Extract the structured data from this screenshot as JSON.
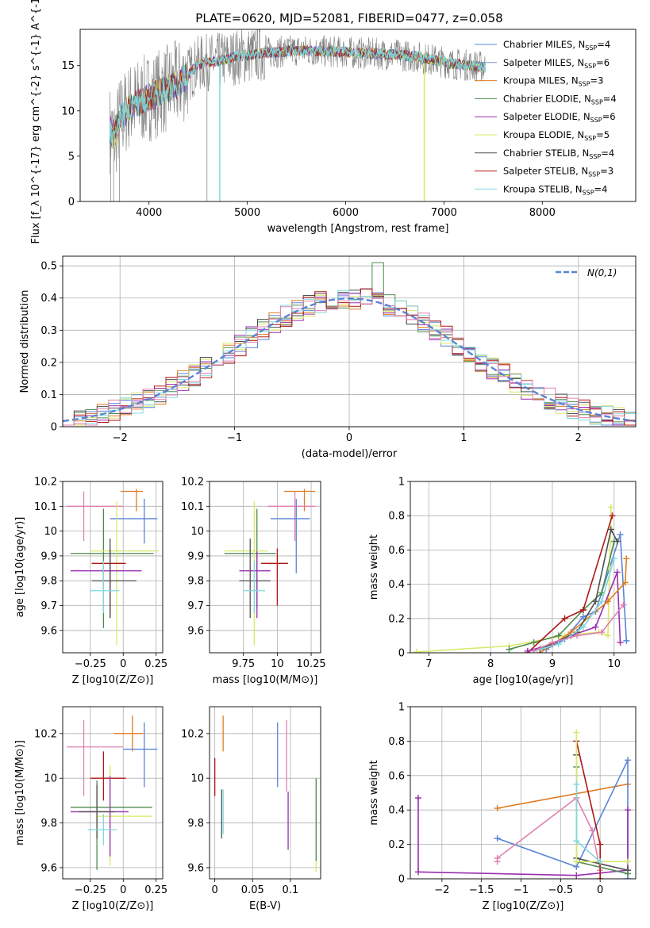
{
  "title": "PLATE=0620, MJD=52081, FIBERID=0477, z=0.058",
  "colors": {
    "c1": "#5b84d6",
    "c2": "#7b8fd4",
    "c3": "#e07b22",
    "c4": "#4e8a4e",
    "c5": "#9a2eb0",
    "c6": "#d9e86a",
    "c7": "#505050",
    "c8": "#b01616",
    "c9": "#7fd9e0",
    "pink": "#e080b0",
    "normal": "#5b84d6",
    "data": "#808080"
  },
  "chart_data": [
    {
      "id": "spectrum",
      "type": "line",
      "xlabel": "wavelength [Angstrom, rest frame]",
      "ylabel": "Flux [f_λ 10^{-17} erg cm^{-2} s^{-1} A^{-1}]",
      "xlim": [
        3300,
        8950
      ],
      "ylim": [
        0,
        19
      ],
      "xticks": [
        4000,
        5000,
        6000,
        7000,
        8000
      ],
      "yticks": [
        0,
        5,
        10,
        15
      ],
      "legend": [
        {
          "name": "Chabrier MILES, N_SSP=4",
          "color": "c1"
        },
        {
          "name": "Salpeter MILES, N_SSP=6",
          "color": "c2"
        },
        {
          "name": "Kroupa MILES, N_SSP=3",
          "color": "c3"
        },
        {
          "name": "Chabrier ELODIE, N_SSP=4",
          "color": "c4"
        },
        {
          "name": "Salpeter ELODIE, N_SSP=6",
          "color": "c5"
        },
        {
          "name": "Kroupa ELODIE, N_SSP=5",
          "color": "c6"
        },
        {
          "name": "Chabrier STELIB, N_SSP=4",
          "color": "c7"
        },
        {
          "name": "Salpeter STELIB, N_SSP=3",
          "color": "c8"
        },
        {
          "name": "Kroupa STELIB, N_SSP=4",
          "color": "c9"
        }
      ],
      "continuum": [
        [
          3600,
          8
        ],
        [
          3650,
          7
        ],
        [
          3700,
          9
        ],
        [
          3800,
          10.5
        ],
        [
          3900,
          11
        ],
        [
          4000,
          11.5
        ],
        [
          4100,
          12
        ],
        [
          4200,
          12.5
        ],
        [
          4300,
          13
        ],
        [
          4400,
          14
        ],
        [
          4500,
          15.2
        ],
        [
          4700,
          15.5
        ],
        [
          4900,
          16
        ],
        [
          5100,
          16.3
        ],
        [
          5300,
          16.5
        ],
        [
          5500,
          16.7
        ],
        [
          5700,
          16.6
        ],
        [
          5900,
          16.5
        ],
        [
          6100,
          16.4
        ],
        [
          6300,
          16.3
        ],
        [
          6500,
          16.2
        ],
        [
          6700,
          16
        ],
        [
          6900,
          15.6
        ],
        [
          7100,
          15.2
        ],
        [
          7300,
          15
        ],
        [
          7420,
          14.8
        ]
      ]
    },
    {
      "id": "residuals",
      "type": "histogram",
      "xlabel": "(data-model)/error",
      "ylabel": "Normed distribution",
      "xlim": [
        -2.5,
        2.5
      ],
      "ylim": [
        0,
        0.53
      ],
      "xticks": [
        -2,
        -1,
        0,
        1,
        2
      ],
      "yticks": [
        0.0,
        0.1,
        0.2,
        0.3,
        0.4,
        0.5
      ],
      "legend": "N(0,1)",
      "grid": true
    },
    {
      "id": "age_vs_Z",
      "type": "errorbar",
      "xlabel": "Z [log10(Z/Z⊙)]",
      "ylabel": "age [log10(age/yr)]",
      "xlim": [
        -0.46,
        0.3
      ],
      "ylim": [
        9.51,
        10.2
      ],
      "xticks": [
        -0.25,
        0.0,
        0.25
      ],
      "yticks": [
        9.6,
        9.7,
        9.8,
        9.9,
        10.0,
        10.1,
        10.2
      ],
      "points": [
        {
          "color": "c3",
          "x": 0.1,
          "xerr": [
            0.12,
            0.05
          ],
          "y": 10.16,
          "yerr": [
            0.08,
            0.01
          ]
        },
        {
          "color": "pink",
          "x": -0.3,
          "xerr": [
            0.13,
            0.3
          ],
          "y": 10.1,
          "yerr": [
            0.14,
            0.06
          ]
        },
        {
          "color": "c1",
          "x": 0.16,
          "xerr": [
            0.26,
            0.1
          ],
          "y": 10.05,
          "yerr": [
            0.1,
            0.08
          ]
        },
        {
          "color": "c4",
          "x": -0.15,
          "xerr": [
            0.25,
            0.38
          ],
          "y": 9.91,
          "yerr": [
            0.3,
            0.18
          ]
        },
        {
          "color": "c6",
          "x": -0.05,
          "xerr": [
            0.2,
            0.32
          ],
          "y": 9.92,
          "yerr": [
            0.38,
            0.2
          ]
        },
        {
          "color": "c8",
          "x": -0.1,
          "xerr": [
            0.14,
            0.12
          ],
          "y": 9.87,
          "yerr": [
            0.2,
            0.06
          ]
        },
        {
          "color": "c5",
          "x": -0.1,
          "xerr": [
            0.3,
            0.24
          ],
          "y": 9.84,
          "yerr": [
            0.19,
            0.08
          ]
        },
        {
          "color": "c7",
          "x": -0.1,
          "xerr": [
            0.14,
            0.2
          ],
          "y": 9.8,
          "yerr": [
            0.15,
            0.17
          ]
        },
        {
          "color": "c9",
          "x": -0.15,
          "xerr": [
            0.1,
            0.12
          ],
          "y": 9.76,
          "yerr": [
            0.09,
            0.12
          ]
        }
      ]
    },
    {
      "id": "age_vs_mass",
      "type": "errorbar",
      "xlabel": "mass [log10(M/M⊙)]",
      "ylabel": "",
      "xlim": [
        9.5,
        10.32
      ],
      "ylim": [
        9.51,
        10.2
      ],
      "xticks": [
        9.75,
        10.0,
        10.25
      ],
      "yticks": [
        9.6,
        9.7,
        9.8,
        9.9,
        10.0,
        10.1,
        10.2
      ],
      "points": [
        {
          "color": "c3",
          "x": 10.2,
          "xerr": [
            0.15,
            0.08
          ],
          "y": 10.16,
          "yerr": [
            0.08,
            0.01
          ]
        },
        {
          "color": "pink",
          "x": 10.13,
          "xerr": [
            0.2,
            0.15
          ],
          "y": 10.1,
          "yerr": [
            0.14,
            0.06
          ]
        },
        {
          "color": "c1",
          "x": 10.14,
          "xerr": [
            0.19,
            0.1
          ],
          "y": 10.05,
          "yerr": [
            0.22,
            0.08
          ]
        },
        {
          "color": "c4",
          "x": 9.85,
          "xerr": [
            0.24,
            0.14
          ],
          "y": 9.91,
          "yerr": [
            0.22,
            0.18
          ]
        },
        {
          "color": "c6",
          "x": 9.83,
          "xerr": [
            0.22,
            0.1
          ],
          "y": 9.92,
          "yerr": [
            0.38,
            0.2
          ]
        },
        {
          "color": "c8",
          "x": 10.0,
          "xerr": [
            0.12,
            0.08
          ],
          "y": 9.87,
          "yerr": [
            0.17,
            0.06
          ]
        },
        {
          "color": "c5",
          "x": 9.85,
          "xerr": [
            0.13,
            0.1
          ],
          "y": 9.84,
          "yerr": [
            0.19,
            0.08
          ]
        },
        {
          "color": "c7",
          "x": 9.8,
          "xerr": [
            0.08,
            0.15
          ],
          "y": 9.8,
          "yerr": [
            0.15,
            0.17
          ]
        },
        {
          "color": "c9",
          "x": 9.83,
          "xerr": [
            0.08,
            0.08
          ],
          "y": 9.76,
          "yerr": [
            0.09,
            0.12
          ]
        }
      ]
    },
    {
      "id": "weight_vs_age",
      "type": "line",
      "xlabel": "age [log10(age/yr)]",
      "ylabel": "mass weight",
      "xlim": [
        6.7,
        10.35
      ],
      "ylim": [
        0,
        1.0
      ],
      "xticks": [
        7,
        8,
        9,
        10
      ],
      "yticks": [
        0.0,
        0.2,
        0.4,
        0.6,
        0.8,
        1.0
      ],
      "series": [
        {
          "color": "c1",
          "x": [
            8.9,
            9.2,
            9.5,
            9.7,
            10.1,
            10.2
          ],
          "y": [
            0.02,
            0.08,
            0.21,
            0.24,
            0.69,
            0.07
          ]
        },
        {
          "color": "c6",
          "x": [
            6.8,
            8.3,
            9.2,
            9.75,
            9.9,
            9.95
          ],
          "y": [
            0.005,
            0.04,
            0.1,
            0.12,
            0.1,
            0.85
          ]
        },
        {
          "color": "c4",
          "x": [
            8.3,
            8.7,
            9.1,
            9.5,
            9.8,
            10.0
          ],
          "y": [
            0.02,
            0.06,
            0.1,
            0.25,
            0.35,
            0.65
          ]
        },
        {
          "color": "c8",
          "x": [
            8.6,
            9.2,
            9.5,
            9.97
          ],
          "y": [
            0.0,
            0.2,
            0.25,
            0.8
          ]
        },
        {
          "color": "c5",
          "x": [
            8.6,
            9.0,
            9.3,
            9.7,
            10.05,
            10.1
          ],
          "y": [
            0.01,
            0.05,
            0.1,
            0.15,
            0.47,
            0.06
          ]
        },
        {
          "color": "c3",
          "x": [
            8.8,
            9.3,
            9.9,
            10.18,
            10.2
          ],
          "y": [
            0.0,
            0.12,
            0.3,
            0.41,
            0.55
          ]
        },
        {
          "color": "c7",
          "x": [
            8.8,
            9.4,
            9.7,
            9.95,
            10.05
          ],
          "y": [
            0.02,
            0.12,
            0.3,
            0.72,
            0.65
          ]
        },
        {
          "color": "c9",
          "x": [
            8.7,
            9.1,
            9.5,
            9.8,
            10.0
          ],
          "y": [
            0.01,
            0.05,
            0.15,
            0.3,
            0.55
          ]
        },
        {
          "color": "pink",
          "x": [
            8.7,
            9.0,
            9.4,
            9.8,
            10.15
          ],
          "y": [
            0.01,
            0.06,
            0.1,
            0.12,
            0.28
          ]
        }
      ]
    },
    {
      "id": "mass_vs_Z",
      "type": "errorbar",
      "xlabel": "Z [log10(Z/Z⊙)]",
      "ylabel": "mass [log10(M/M⊙)]",
      "xlim": [
        -0.46,
        0.3
      ],
      "ylim": [
        9.55,
        10.32
      ],
      "xticks": [
        -0.25,
        0.0,
        0.25
      ],
      "yticks": [
        9.6,
        9.8,
        10.0,
        10.2
      ],
      "points": [
        {
          "color": "c3",
          "x": 0.07,
          "xerr": [
            0.14,
            0.08
          ],
          "y": 10.2,
          "yerr": [
            0.08,
            0.08
          ]
        },
        {
          "color": "pink",
          "x": -0.3,
          "xerr": [
            0.13,
            0.3
          ],
          "y": 10.14,
          "yerr": [
            0.22,
            0.12
          ]
        },
        {
          "color": "c1",
          "x": 0.16,
          "xerr": [
            0.16,
            0.1
          ],
          "y": 10.13,
          "yerr": [
            0.17,
            0.12
          ]
        },
        {
          "color": "c8",
          "x": -0.15,
          "xerr": [
            0.1,
            0.17
          ],
          "y": 10.0,
          "yerr": [
            0.1,
            0.12
          ]
        },
        {
          "color": "c4",
          "x": -0.2,
          "xerr": [
            0.2,
            0.42
          ],
          "y": 9.87,
          "yerr": [
            0.28,
            0.12
          ]
        },
        {
          "color": "c6",
          "x": -0.1,
          "xerr": [
            0.1,
            0.32
          ],
          "y": 9.83,
          "yerr": [
            0.22,
            0.23
          ]
        },
        {
          "color": "c5",
          "x": -0.1,
          "xerr": [
            0.3,
            0.14
          ],
          "y": 9.85,
          "yerr": [
            0.2,
            0.16
          ]
        },
        {
          "color": "c7",
          "x": -0.2,
          "xerr": [
            0.14,
            0.14
          ],
          "y": 9.85,
          "yerr": [
            0.12,
            0.12
          ]
        },
        {
          "color": "c9",
          "x": -0.15,
          "xerr": [
            0.12,
            0.1
          ],
          "y": 9.77,
          "yerr": [
            0.07,
            0.07
          ]
        }
      ]
    },
    {
      "id": "mass_vs_EBV",
      "type": "errorbar",
      "xlabel": "E(B-V)",
      "ylabel": "",
      "xlim": [
        -0.007,
        0.14
      ],
      "ylim": [
        9.55,
        10.32
      ],
      "xticks": [
        0.0,
        0.05,
        0.1
      ],
      "yticks": [
        9.6,
        9.8,
        10.0,
        10.2
      ],
      "points": [
        {
          "color": "c3",
          "x": 0.011,
          "y": 10.2,
          "yerr": [
            0.08,
            0.08
          ]
        },
        {
          "color": "c8",
          "x": 0.0,
          "y": 10.0,
          "yerr": [
            0.08,
            0.09
          ]
        },
        {
          "color": "c7",
          "x": 0.009,
          "y": 9.85,
          "yerr": [
            0.12,
            0.1
          ]
        },
        {
          "color": "c9",
          "x": 0.011,
          "y": 9.85,
          "yerr": [
            0.1,
            0.1
          ]
        },
        {
          "color": "c1",
          "x": 0.083,
          "y": 10.13,
          "yerr": [
            0.17,
            0.12
          ]
        },
        {
          "color": "pink",
          "x": 0.095,
          "y": 10.1,
          "yerr": [
            0.16,
            0.16
          ]
        },
        {
          "color": "c5",
          "x": 0.097,
          "y": 9.85,
          "yerr": [
            0.17,
            0.09
          ]
        },
        {
          "color": "c6",
          "x": 0.134,
          "y": 9.83,
          "yerr": [
            0.25,
            0.17
          ]
        },
        {
          "color": "c4",
          "x": 0.134,
          "y": 9.83,
          "yerr": [
            0.2,
            0.17
          ]
        }
      ]
    },
    {
      "id": "weight_vs_Z",
      "type": "line",
      "xlabel": "Z [log10(Z/Z⊙)]",
      "ylabel": "mass weight",
      "xlim": [
        -2.4,
        0.45
      ],
      "ylim": [
        0,
        1.0
      ],
      "xticks": [
        -2.0,
        -1.5,
        -1.0,
        -0.5,
        0.0
      ],
      "yticks": [
        0.0,
        0.2,
        0.4,
        0.6,
        0.8,
        1.0
      ],
      "series": [
        {
          "color": "c3",
          "x": [
            -1.3,
            0.35
          ],
          "y": [
            0.41,
            0.55
          ]
        },
        {
          "color": "c1",
          "x": [
            -1.3,
            -0.3,
            0.35,
            0.35
          ],
          "y": [
            0.235,
            0.07,
            0.69,
            0.0
          ]
        },
        {
          "color": "pink",
          "x": [
            -1.3,
            -1.3,
            -0.3,
            -0.1,
            0.0
          ],
          "y": [
            0.1,
            0.12,
            0.47,
            0.28,
            0.05
          ]
        },
        {
          "color": "c5",
          "x": [
            -2.3,
            -2.3,
            -0.3,
            0.35,
            0.35
          ],
          "y": [
            0.47,
            0.04,
            0.02,
            0.05,
            0.4
          ]
        },
        {
          "color": "c8",
          "x": [
            -0.3,
            0.0,
            0.0
          ],
          "y": [
            0.8,
            0.2,
            0.0
          ]
        },
        {
          "color": "c7",
          "x": [
            -0.3,
            -0.3,
            0.35
          ],
          "y": [
            0.72,
            0.12,
            0.05
          ]
        },
        {
          "color": "c4",
          "x": [
            -0.3,
            -0.3,
            0.35
          ],
          "y": [
            0.65,
            0.1,
            0.03
          ]
        },
        {
          "color": "c6",
          "x": [
            -0.3,
            -0.3,
            0.35
          ],
          "y": [
            0.85,
            0.1,
            0.1
          ]
        },
        {
          "color": "c9",
          "x": [
            -0.3,
            -0.3,
            0.0
          ],
          "y": [
            0.55,
            0.22,
            0.1
          ]
        }
      ]
    }
  ]
}
